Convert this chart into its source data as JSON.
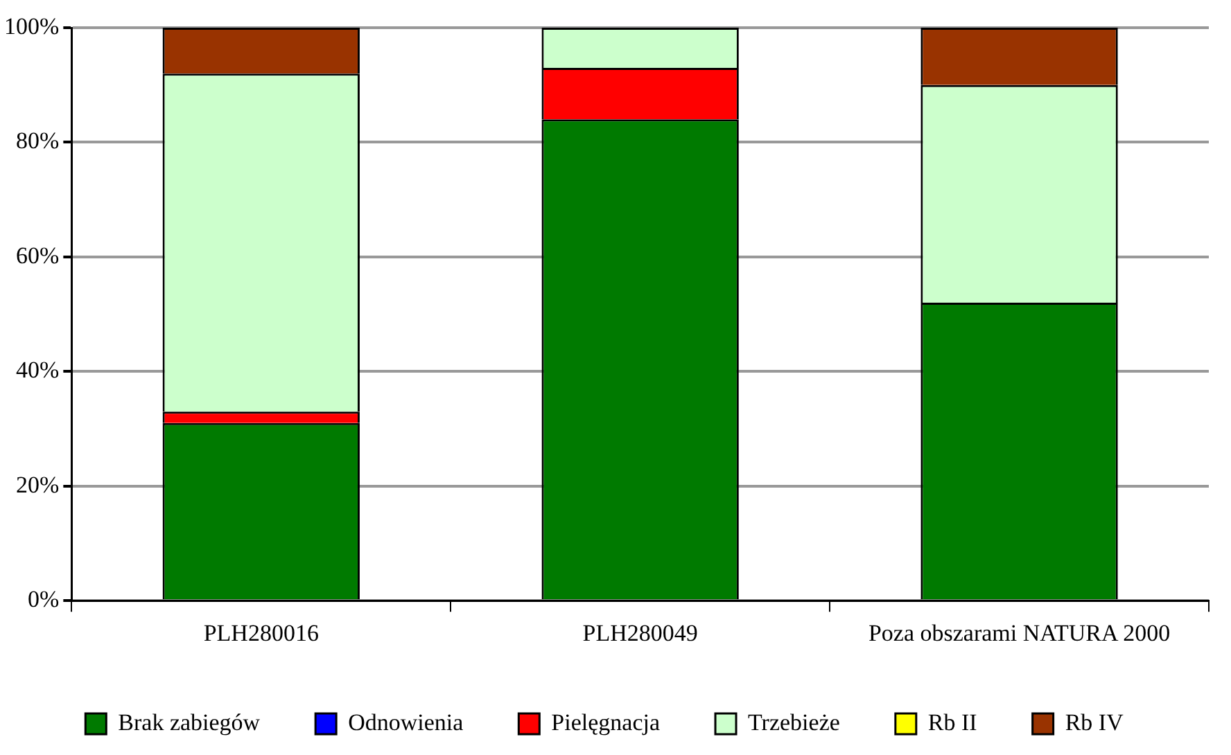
{
  "chart_data": {
    "type": "bar",
    "stacked": true,
    "categories": [
      "PLH280016",
      "PLH280049",
      "Poza obszarami NATURA 2000"
    ],
    "series": [
      {
        "name": "Brak zabiegów",
        "color": "#007a00",
        "values": [
          31,
          84,
          52
        ]
      },
      {
        "name": "Odnowienia",
        "color": "#0000ff",
        "values": [
          0,
          0,
          0
        ]
      },
      {
        "name": "Pielęgnacja",
        "color": "#ff0000",
        "values": [
          2,
          9,
          0
        ]
      },
      {
        "name": "Trzebieże",
        "color": "#ccffcc",
        "values": [
          59,
          7,
          38
        ]
      },
      {
        "name": "Rb II",
        "color": "#ffff00",
        "values": [
          0,
          0,
          0
        ]
      },
      {
        "name": "Rb IV",
        "color": "#993300",
        "values": [
          8,
          0,
          10
        ]
      }
    ],
    "ylim": [
      0,
      100
    ],
    "yticks": [
      {
        "value": 0,
        "label": "0%"
      },
      {
        "value": 20,
        "label": "20%"
      },
      {
        "value": 40,
        "label": "40%"
      },
      {
        "value": 60,
        "label": "60%"
      },
      {
        "value": 80,
        "label": "80%"
      },
      {
        "value": 100,
        "label": "100%"
      }
    ],
    "grid": "y",
    "legend": "bottom"
  }
}
